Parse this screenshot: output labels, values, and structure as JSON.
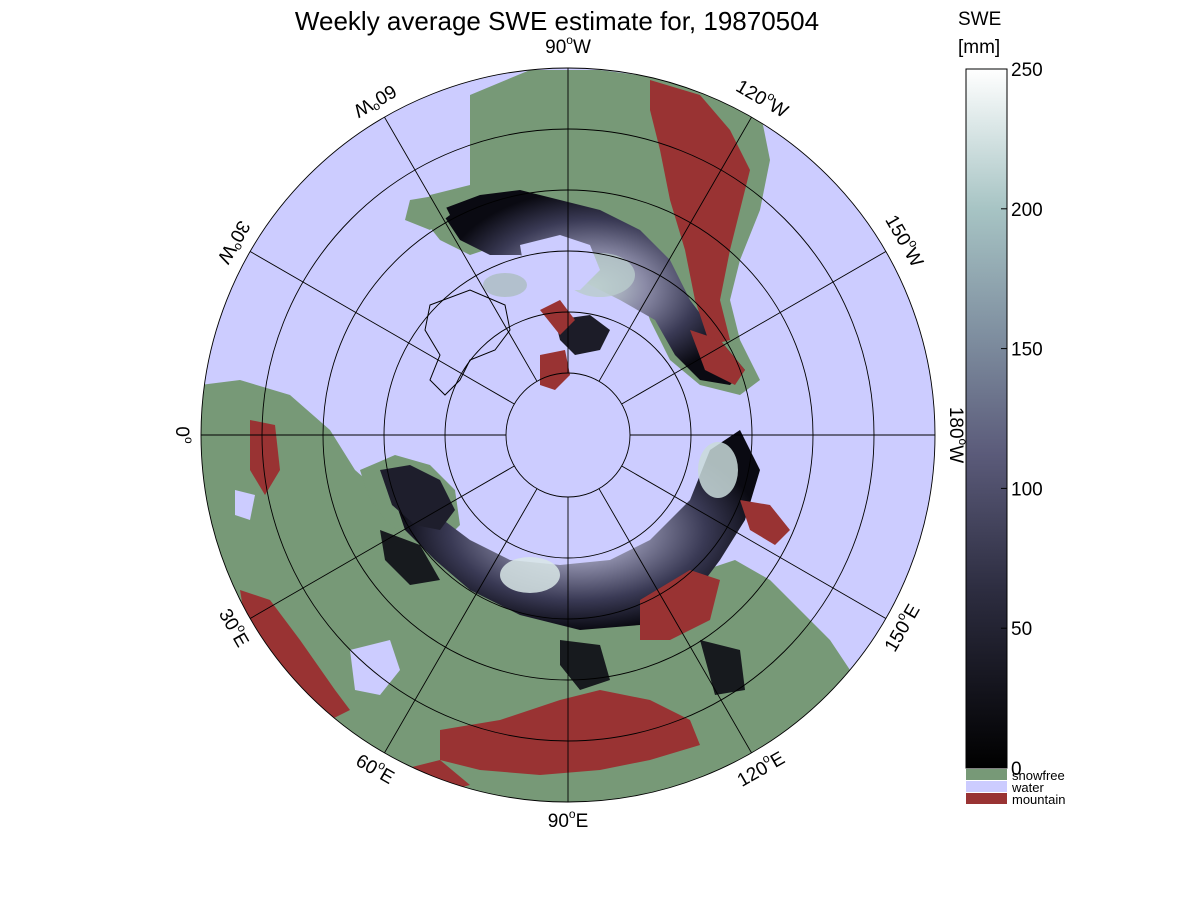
{
  "title": "Weekly average SWE estimate for, 19870504",
  "colors": {
    "water": "#ccccff",
    "snowfree": "#779977",
    "mountain": "#993333",
    "grid": "#000000"
  },
  "longitude_labels": [
    {
      "deg": "90",
      "dir": "W"
    },
    {
      "deg": "120",
      "dir": "W"
    },
    {
      "deg": "150",
      "dir": "W"
    },
    {
      "deg": "180",
      "dir": "W"
    },
    {
      "deg": "150",
      "dir": "E"
    },
    {
      "deg": "120",
      "dir": "E"
    },
    {
      "deg": "90",
      "dir": "E"
    },
    {
      "deg": "60",
      "dir": "E"
    },
    {
      "deg": "30",
      "dir": "E"
    },
    {
      "deg": "0",
      "dir": ""
    },
    {
      "deg": "30",
      "dir": "W"
    },
    {
      "deg": "60",
      "dir": "W"
    }
  ],
  "colorbar": {
    "title_line1": "SWE",
    "title_line2": "[mm]",
    "min": 0,
    "max": 250,
    "ticks": [
      "0",
      "50",
      "100",
      "150",
      "200",
      "250"
    ],
    "categories": [
      {
        "label": "snowfree",
        "color": "#779977"
      },
      {
        "label": "water",
        "color": "#ccccff"
      },
      {
        "label": "mountain",
        "color": "#993333"
      }
    ]
  }
}
